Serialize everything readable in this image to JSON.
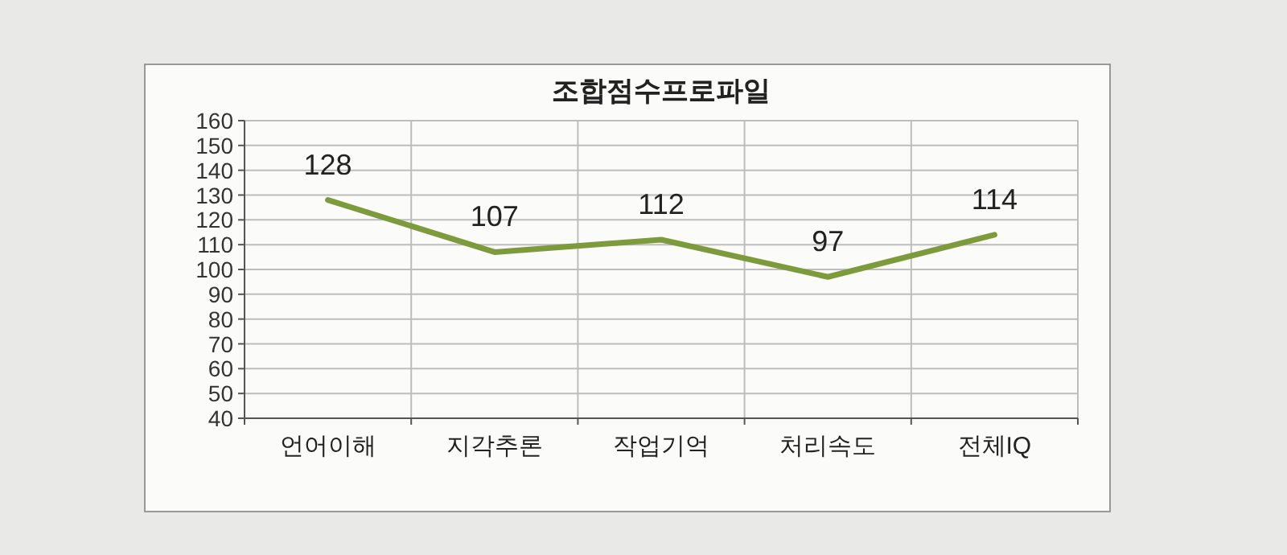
{
  "chart_data": {
    "type": "line",
    "title": "조합점수프로파일",
    "categories": [
      "언어이해",
      "지각추론",
      "작업기억",
      "처리속도",
      "전체IQ"
    ],
    "series": [
      {
        "color": "#7d9a3c",
        "values": [
          128,
          107,
          112,
          97,
          114
        ]
      }
    ],
    "ylim": [
      40,
      160
    ],
    "yticks": [
      40,
      50,
      60,
      70,
      80,
      90,
      100,
      110,
      120,
      130,
      140,
      150,
      160
    ],
    "grid": true,
    "data_labels": true
  }
}
